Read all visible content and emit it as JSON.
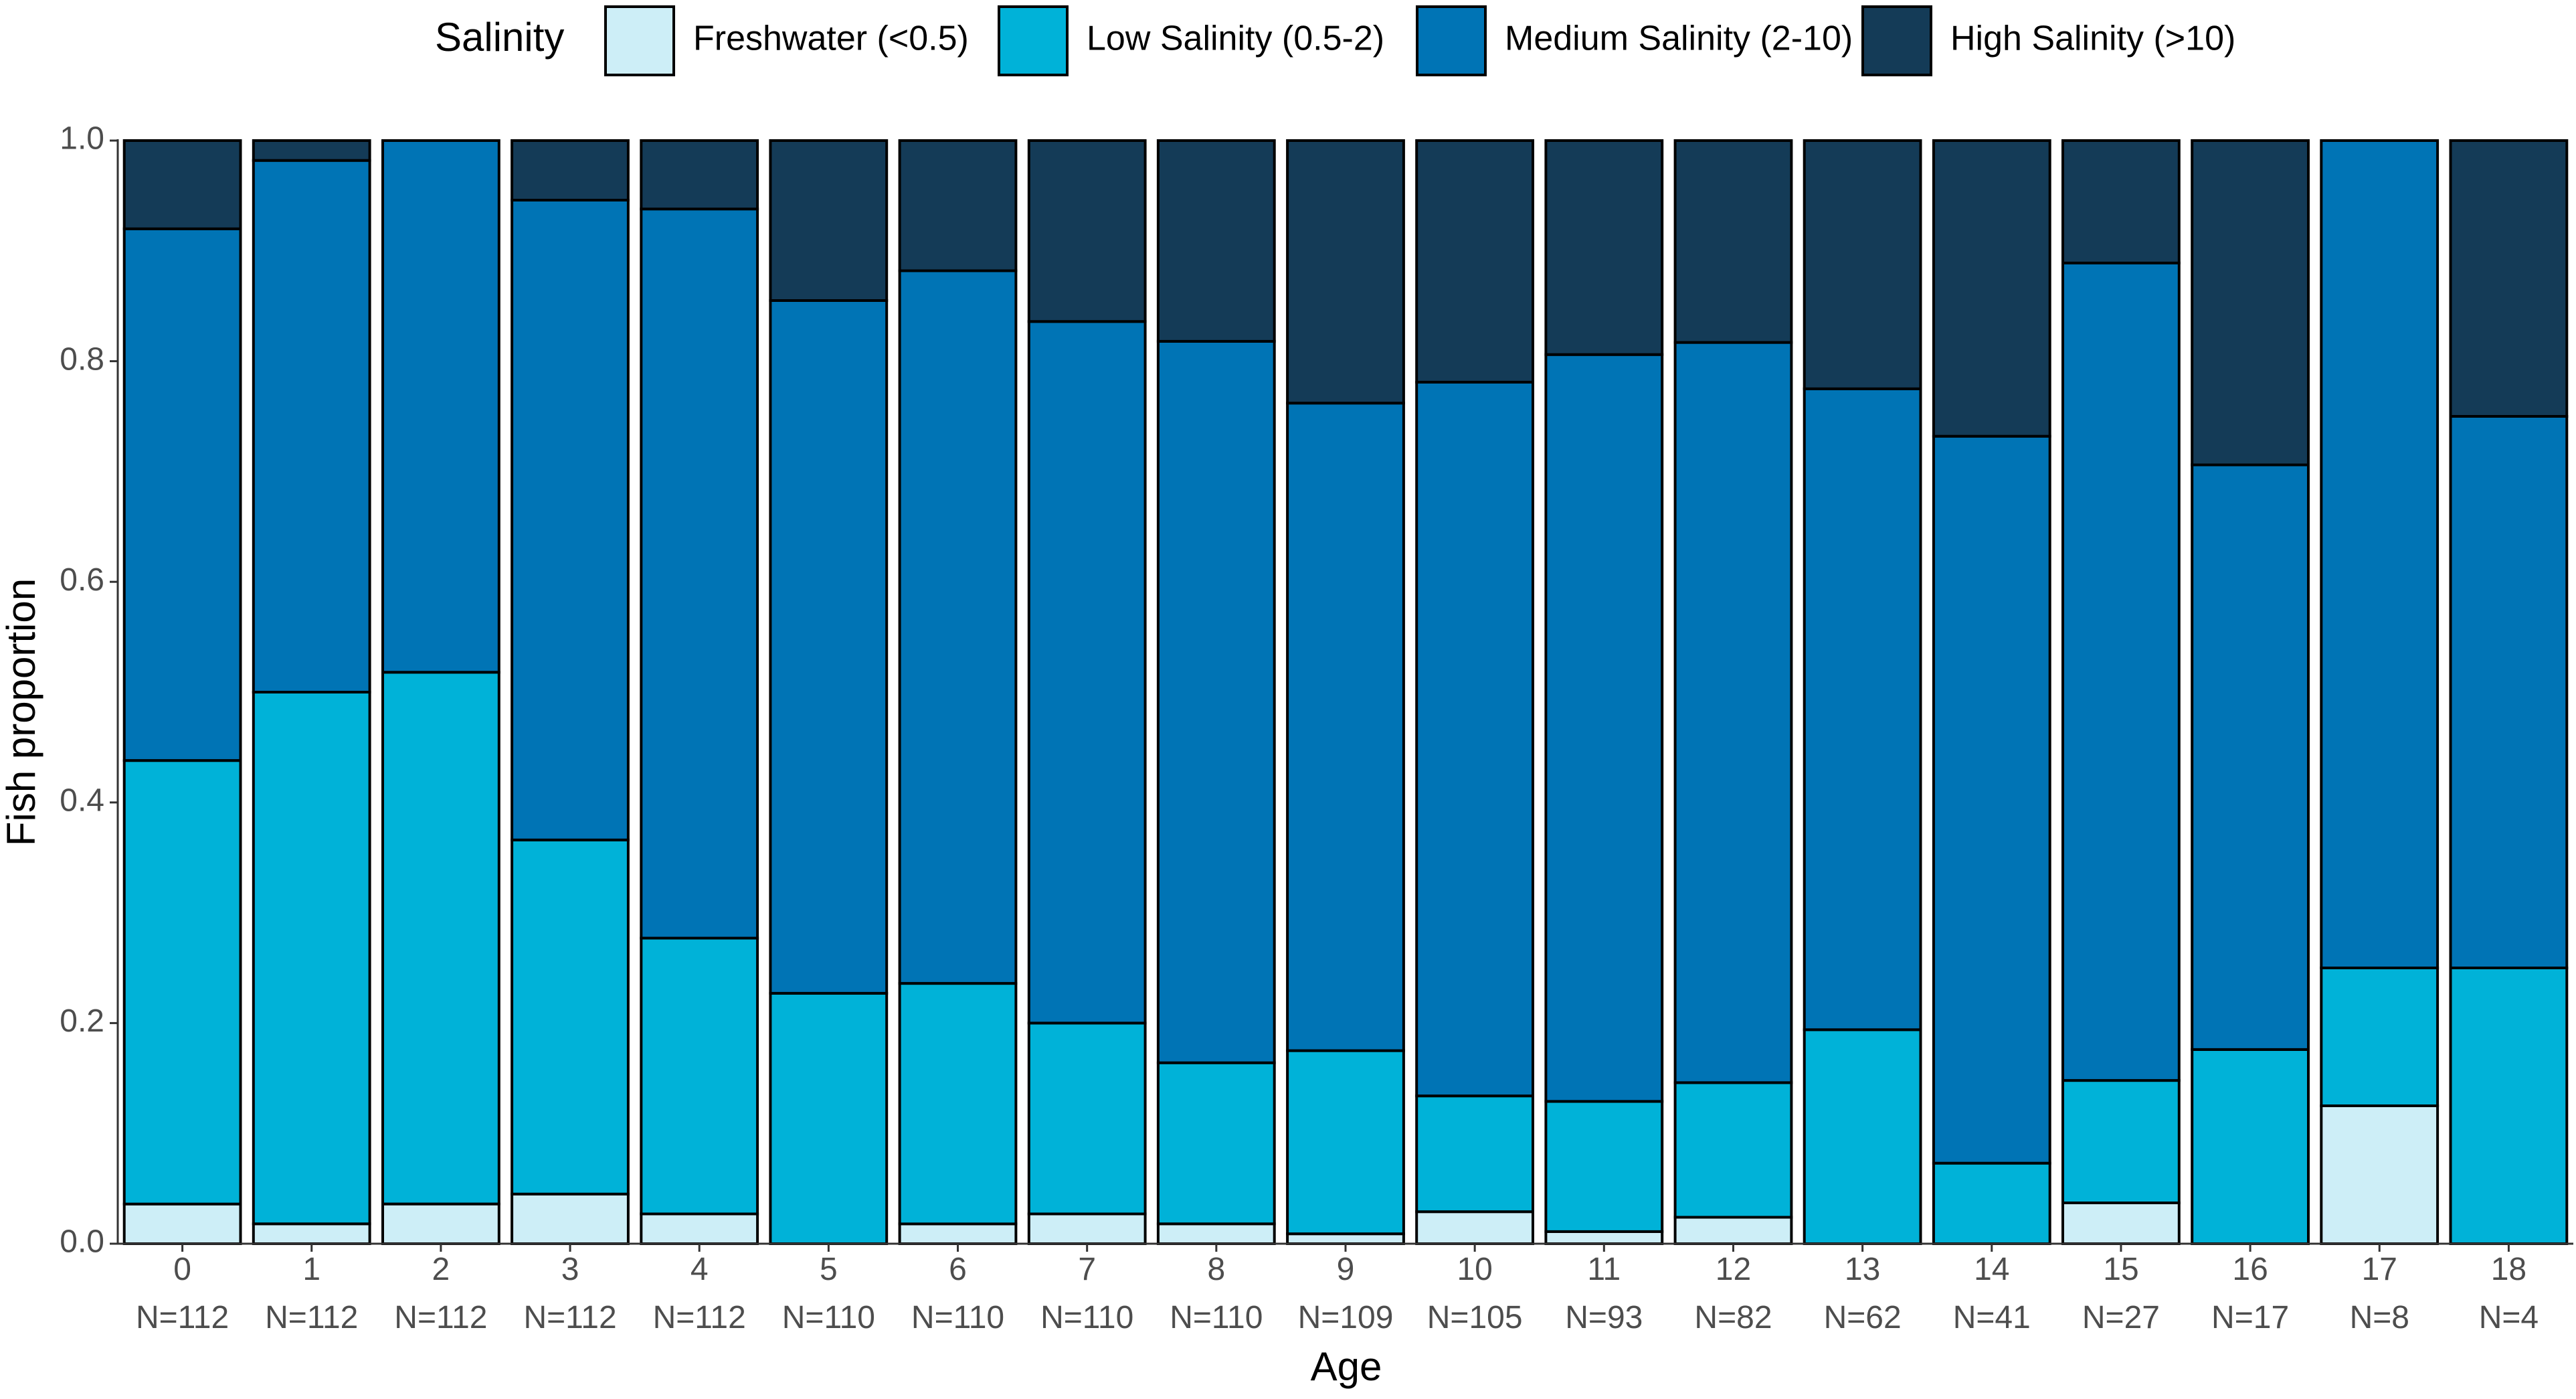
{
  "chart_data": {
    "type": "bar",
    "stacked": true,
    "title": "",
    "xlabel": "Age",
    "ylabel": "Fish proportion",
    "ylim": [
      0,
      1
    ],
    "yticks": [
      "0.0",
      "0.2",
      "0.4",
      "0.6",
      "0.8",
      "1.0"
    ],
    "grid": false,
    "legend": {
      "title": "Salinity",
      "position": "top"
    },
    "categories": [
      "0",
      "1",
      "2",
      "3",
      "4",
      "5",
      "6",
      "7",
      "8",
      "9",
      "10",
      "11",
      "12",
      "13",
      "14",
      "15",
      "16",
      "17",
      "18"
    ],
    "sample_sizes": [
      "N=112",
      "N=112",
      "N=112",
      "N=112",
      "N=112",
      "N=110",
      "N=110",
      "N=110",
      "N=110",
      "N=109",
      "N=105",
      "N=93",
      "N=82",
      "N=62",
      "N=41",
      "N=27",
      "N=17",
      "N=8",
      "N=4"
    ],
    "series": [
      {
        "name": "Freshwater (<0.5)",
        "color": "#cdeef7",
        "values": [
          0.036,
          0.018,
          0.036,
          0.045,
          0.027,
          0.0,
          0.018,
          0.027,
          0.018,
          0.009,
          0.029,
          0.011,
          0.024,
          0.0,
          0.0,
          0.037,
          0.0,
          0.125,
          0.0
        ]
      },
      {
        "name": "Low Salinity (0.5-2)",
        "color": "#00b2d8",
        "values": [
          0.402,
          0.482,
          0.482,
          0.321,
          0.25,
          0.227,
          0.218,
          0.173,
          0.146,
          0.166,
          0.105,
          0.118,
          0.122,
          0.194,
          0.073,
          0.111,
          0.176,
          0.125,
          0.25
        ]
      },
      {
        "name": "Medium Salinity (2-10)",
        "color": "#0074b5",
        "values": [
          0.482,
          0.482,
          0.482,
          0.58,
          0.661,
          0.628,
          0.646,
          0.636,
          0.654,
          0.587,
          0.647,
          0.677,
          0.671,
          0.581,
          0.659,
          0.741,
          0.53,
          0.75,
          0.5
        ]
      },
      {
        "name": "High Salinity (>10)",
        "color": "#143b57",
        "values": [
          0.08,
          0.018,
          0.0,
          0.054,
          0.062,
          0.145,
          0.118,
          0.164,
          0.182,
          0.238,
          0.219,
          0.194,
          0.183,
          0.225,
          0.268,
          0.111,
          0.294,
          0.0,
          0.25
        ]
      }
    ]
  }
}
